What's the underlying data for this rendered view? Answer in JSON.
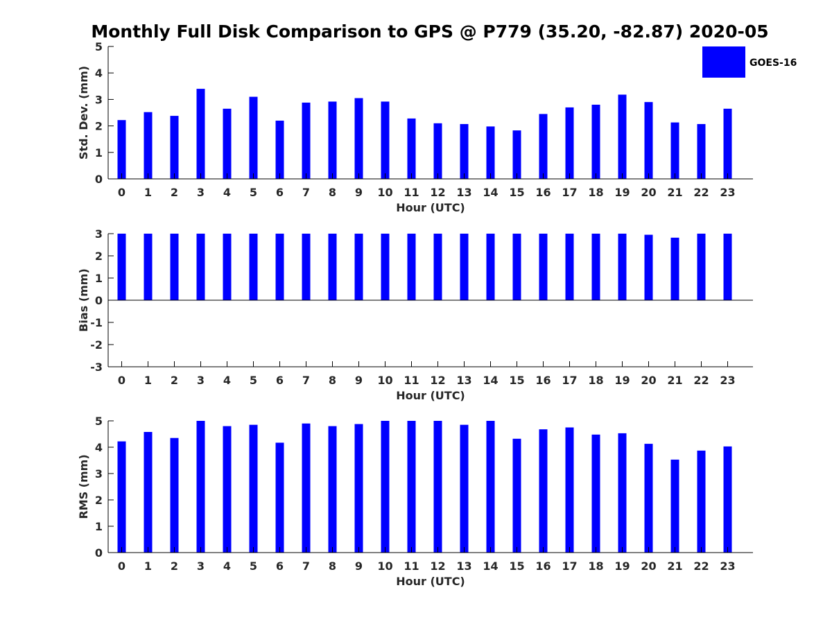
{
  "chart_data": {
    "title": "Monthly Full Disk Comparison to GPS @ P779 (35.20, -82.87) 2020-05",
    "legend": {
      "entries": [
        "GOES-16"
      ],
      "placement": "top-right",
      "color": "#0000ff"
    },
    "bar_color": "#0000ff",
    "panels": [
      {
        "type": "bar",
        "ylabel": "Std. Dev. (mm)",
        "xlabel": "Hour (UTC)",
        "ylim": [
          0,
          5
        ],
        "yticks": [
          "0",
          "1",
          "2",
          "3",
          "4",
          "5"
        ],
        "categories": [
          "0",
          "1",
          "2",
          "3",
          "4",
          "5",
          "6",
          "7",
          "8",
          "9",
          "10",
          "11",
          "12",
          "13",
          "14",
          "15",
          "16",
          "17",
          "18",
          "19",
          "20",
          "21",
          "22",
          "23"
        ],
        "series": [
          {
            "name": "GOES-16",
            "values": [
              2.22,
              2.52,
              2.38,
              3.4,
              2.65,
              3.1,
              2.2,
              2.88,
              2.92,
              3.05,
              2.92,
              2.28,
              2.1,
              2.07,
              1.98,
              1.83,
              2.45,
              2.7,
              2.8,
              3.18,
              2.9,
              2.13,
              2.07,
              2.65
            ]
          }
        ]
      },
      {
        "type": "bar",
        "ylabel": "Bias (mm)",
        "xlabel": "Hour (UTC)",
        "ylim": [
          -3,
          3
        ],
        "yticks": [
          "-3",
          "-2",
          "-1",
          "0",
          "1",
          "2",
          "3"
        ],
        "categories": [
          "0",
          "1",
          "2",
          "3",
          "4",
          "5",
          "6",
          "7",
          "8",
          "9",
          "10",
          "11",
          "12",
          "13",
          "14",
          "15",
          "16",
          "17",
          "18",
          "19",
          "20",
          "21",
          "22",
          "23"
        ],
        "series": [
          {
            "name": "GOES-16",
            "values": [
              3.0,
              3.0,
              3.0,
              3.0,
              3.0,
              3.0,
              3.0,
              3.0,
              3.0,
              3.0,
              3.0,
              3.0,
              3.0,
              3.0,
              3.0,
              3.0,
              3.0,
              3.0,
              3.0,
              3.0,
              2.95,
              2.82,
              3.0,
              3.0
            ]
          }
        ]
      },
      {
        "type": "bar",
        "ylabel": "RMS (mm)",
        "xlabel": "Hour (UTC)",
        "ylim": [
          0,
          5
        ],
        "yticks": [
          "0",
          "1",
          "2",
          "3",
          "4",
          "5"
        ],
        "categories": [
          "0",
          "1",
          "2",
          "3",
          "4",
          "5",
          "6",
          "7",
          "8",
          "9",
          "10",
          "11",
          "12",
          "13",
          "14",
          "15",
          "16",
          "17",
          "18",
          "19",
          "20",
          "21",
          "22",
          "23"
        ],
        "series": [
          {
            "name": "GOES-16",
            "values": [
              4.22,
              4.58,
              4.35,
              5.0,
              4.8,
              4.85,
              4.17,
              4.9,
              4.8,
              4.88,
              5.0,
              5.0,
              5.0,
              4.85,
              5.0,
              4.32,
              4.68,
              4.75,
              4.48,
              4.53,
              4.13,
              3.53,
              3.87,
              4.03
            ]
          }
        ]
      }
    ]
  }
}
